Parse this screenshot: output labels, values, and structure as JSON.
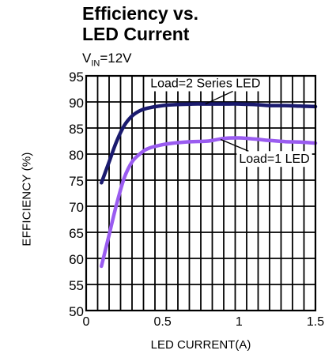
{
  "chart_data": {
    "type": "line",
    "title_lines": [
      "Efficiency vs.",
      "LED Current"
    ],
    "subtitle": {
      "prefix": "V",
      "subscript": "IN",
      "suffix": "=12V"
    },
    "xlabel": "LED CURRENT(A)",
    "ylabel": "EFFICIENCY (%)",
    "xlim": [
      0,
      1.5
    ],
    "ylim": [
      50,
      95
    ],
    "x_ticks": [
      0,
      0.5,
      1,
      1.5
    ],
    "x_tick_labels": [
      "0",
      "0.5",
      "1",
      "1.5"
    ],
    "y_ticks": [
      50,
      55,
      60,
      65,
      70,
      75,
      80,
      85,
      90,
      95
    ],
    "y_tick_labels": [
      "50",
      "55",
      "60",
      "65",
      "70",
      "75",
      "80",
      "85",
      "90",
      "95"
    ],
    "grid": true,
    "series": [
      {
        "name": "Load=2 Series LED",
        "color": "#1a1a6e",
        "x": [
          0.1,
          0.15,
          0.2,
          0.25,
          0.3,
          0.35,
          0.4,
          0.5,
          0.6,
          0.7,
          0.8,
          0.9,
          1.0,
          1.1,
          1.2,
          1.3,
          1.4,
          1.5
        ],
        "y": [
          74.5,
          78.5,
          82.5,
          85.5,
          87.3,
          88.3,
          88.8,
          89.3,
          89.5,
          89.6,
          89.6,
          89.6,
          89.6,
          89.5,
          89.3,
          89.3,
          89.2,
          89.1
        ]
      },
      {
        "name": "Load=1 LED",
        "color": "#9a5cf0",
        "x": [
          0.1,
          0.15,
          0.2,
          0.25,
          0.3,
          0.35,
          0.4,
          0.5,
          0.6,
          0.7,
          0.8,
          0.9,
          1.0,
          1.1,
          1.2,
          1.3,
          1.4,
          1.5
        ],
        "y": [
          58.5,
          64.5,
          70.5,
          75.5,
          78.5,
          80.0,
          81.0,
          81.8,
          82.2,
          82.4,
          82.5,
          83.0,
          83.1,
          82.9,
          82.6,
          82.4,
          82.3,
          82.1
        ]
      }
    ],
    "annotations": [
      {
        "text": "Load=2 Series LED",
        "series": 0,
        "x": 0.42,
        "y": 92.8,
        "arrow_to": [
          0.78,
          89.6
        ]
      },
      {
        "text": "Load=1 LED",
        "series": 1,
        "x": 1.0,
        "y": 78.3,
        "arrow_to": [
          0.88,
          82.8
        ]
      }
    ]
  }
}
